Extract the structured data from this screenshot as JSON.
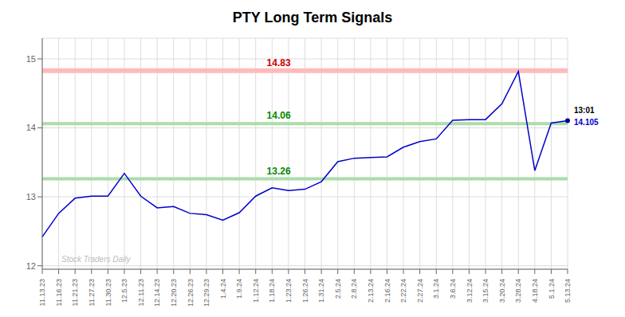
{
  "chart_data": {
    "type": "line",
    "title": "PTY Long Term Signals",
    "categories": [
      "11.13.23",
      "11.16.23",
      "11.21.23",
      "11.27.23",
      "11.30.23",
      "12.5.23",
      "12.11.23",
      "12.14.23",
      "12.20.23",
      "12.26.23",
      "12.29.23",
      "1.4.24",
      "1.9.24",
      "1.12.24",
      "1.18.24",
      "1.23.24",
      "1.26.24",
      "1.31.24",
      "2.5.24",
      "2.8.24",
      "2.13.24",
      "2.16.24",
      "2.22.24",
      "2.27.24",
      "3.1.24",
      "3.6.24",
      "3.12.24",
      "3.15.24",
      "3.20.24",
      "3.28.24",
      "4.18.24",
      "5.1.24",
      "5.13.24"
    ],
    "values": [
      12.42,
      12.76,
      12.98,
      13.01,
      13.01,
      13.34,
      13.01,
      12.84,
      12.86,
      12.76,
      12.74,
      12.66,
      12.77,
      13.01,
      13.13,
      13.09,
      13.11,
      13.22,
      13.51,
      13.56,
      13.57,
      13.58,
      13.72,
      13.8,
      13.84,
      14.11,
      14.12,
      14.12,
      14.35,
      14.82,
      13.38,
      14.07,
      14.105
    ],
    "color": "#0000cc",
    "ylim": [
      11.95,
      15.3
    ],
    "yticks": [
      12,
      13,
      14,
      15
    ],
    "grid": true,
    "hlines": [
      {
        "value": 14.83,
        "color": "#ffbbbb",
        "label_color": "#cc0000"
      },
      {
        "value": 14.06,
        "color": "#aaddaa",
        "label_color": "#008800"
      },
      {
        "value": 13.26,
        "color": "#aaddaa",
        "label_color": "#008800"
      }
    ],
    "last_point": {
      "color": "#000088",
      "annotations": [
        {
          "text": "13:01",
          "color": "#000000"
        },
        {
          "text": "14.105",
          "color": "#0000cc"
        }
      ]
    },
    "watermark": {
      "text": "Stock Traders Daily",
      "color": "#bbbbbb"
    }
  }
}
